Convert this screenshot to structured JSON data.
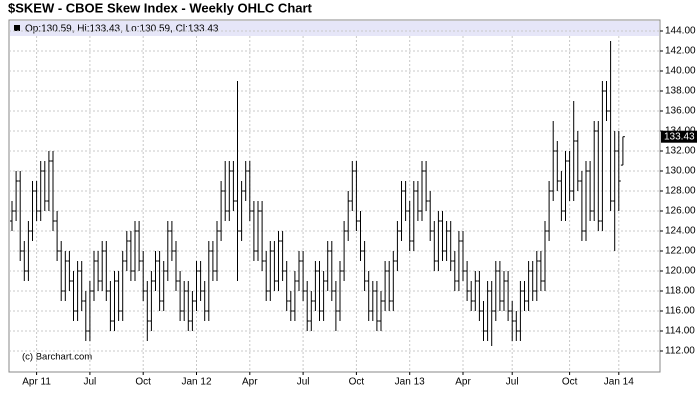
{
  "chart_data": {
    "type": "ohlc",
    "title": "$SKEW - CBOE Skew Index - Weekly OHLC Chart",
    "info_text": "Op:130.59, Hi:133.43, Lo:130.59, Cl:133.43",
    "watermark": "(c) Barchart.com",
    "color": "#000000",
    "grid": true,
    "categories": [
      null,
      null,
      null,
      null,
      null,
      null,
      "Apr 11",
      null,
      null,
      null,
      null,
      null,
      null,
      null,
      null,
      null,
      null,
      null,
      null,
      "Jul",
      null,
      null,
      null,
      null,
      null,
      null,
      null,
      null,
      null,
      null,
      null,
      null,
      "Oct",
      null,
      null,
      null,
      null,
      null,
      null,
      null,
      null,
      null,
      null,
      null,
      null,
      "Jan 12",
      null,
      null,
      null,
      null,
      null,
      null,
      null,
      null,
      null,
      null,
      null,
      null,
      "Apr",
      null,
      null,
      null,
      null,
      null,
      null,
      null,
      null,
      null,
      null,
      null,
      null,
      "Jul",
      null,
      null,
      null,
      null,
      null,
      null,
      null,
      null,
      null,
      null,
      null,
      null,
      "Oct",
      null,
      null,
      null,
      null,
      null,
      null,
      null,
      null,
      null,
      null,
      null,
      null,
      "Jan 13",
      null,
      null,
      null,
      null,
      null,
      null,
      null,
      null,
      null,
      null,
      null,
      null,
      "Apr",
      null,
      null,
      null,
      null,
      null,
      null,
      null,
      null,
      null,
      null,
      null,
      "Jul",
      null,
      null,
      null,
      null,
      null,
      null,
      null,
      null,
      null,
      null,
      null,
      null,
      null,
      "Oct",
      null,
      null,
      null,
      null,
      null,
      null,
      null,
      null,
      null,
      null,
      null,
      "Jan 14",
      null
    ],
    "open": [
      125,
      126,
      129,
      122,
      120,
      124,
      128,
      126,
      130,
      127,
      131,
      125,
      122,
      118,
      121,
      119,
      116,
      120,
      117,
      114,
      118,
      121,
      119,
      122,
      118,
      115,
      119,
      116,
      121,
      123,
      120,
      124,
      121,
      118,
      115,
      119,
      121,
      117,
      120,
      124,
      122,
      119,
      116,
      118,
      115,
      117,
      120,
      118,
      116,
      122,
      120,
      124,
      128,
      126,
      130,
      127,
      124,
      128,
      130,
      126,
      122,
      126,
      121,
      118,
      122,
      119,
      123,
      120,
      117,
      116,
      119,
      121,
      118,
      115,
      117,
      120,
      116,
      119,
      122,
      118,
      116,
      120,
      124,
      127,
      130,
      125,
      122,
      119,
      116,
      118,
      115,
      117,
      120,
      117,
      121,
      124,
      128,
      126,
      123,
      128,
      126,
      130,
      127,
      124,
      121,
      125,
      122,
      124,
      121,
      119,
      123,
      120,
      118,
      117,
      119,
      116,
      114,
      118,
      116,
      120,
      117,
      119,
      116,
      115,
      114,
      118,
      117,
      120,
      118,
      121,
      119,
      124,
      128,
      132,
      129,
      126,
      131,
      128,
      133,
      129,
      124,
      130,
      126,
      134,
      125,
      138,
      136,
      127,
      132,
      130.59
    ],
    "high": [
      127,
      130,
      130,
      123,
      125,
      129,
      129,
      131,
      131,
      132,
      132,
      126,
      123,
      122,
      122,
      120,
      121,
      121,
      118,
      119,
      122,
      122,
      123,
      123,
      119,
      120,
      120,
      122,
      124,
      124,
      125,
      125,
      122,
      119,
      120,
      122,
      122,
      121,
      125,
      125,
      123,
      120,
      119,
      119,
      118,
      121,
      121,
      119,
      123,
      123,
      125,
      129,
      131,
      131,
      131,
      139,
      129,
      131,
      131,
      127,
      127,
      127,
      122,
      123,
      123,
      124,
      124,
      121,
      118,
      120,
      122,
      122,
      119,
      118,
      121,
      121,
      120,
      123,
      123,
      119,
      121,
      125,
      128,
      131,
      131,
      126,
      123,
      120,
      119,
      119,
      118,
      121,
      121,
      122,
      125,
      129,
      129,
      127,
      129,
      129,
      131,
      131,
      128,
      125,
      126,
      126,
      125,
      125,
      122,
      124,
      124,
      121,
      119,
      120,
      120,
      117,
      119,
      119,
      121,
      121,
      120,
      120,
      117,
      116,
      119,
      119,
      121,
      121,
      122,
      122,
      125,
      129,
      135,
      133,
      130,
      132,
      132,
      137,
      134,
      130,
      131,
      131,
      135,
      135,
      139,
      139,
      143,
      134,
      134,
      133.43
    ],
    "low": [
      124,
      125,
      121,
      119,
      119,
      123,
      125,
      125,
      126,
      126,
      124,
      121,
      117,
      117,
      118,
      115,
      115,
      116,
      113,
      113,
      117,
      118,
      118,
      117,
      114,
      114,
      115,
      115,
      120,
      119,
      119,
      120,
      117,
      113,
      114,
      118,
      116,
      116,
      119,
      121,
      118,
      115,
      115,
      114,
      114,
      116,
      117,
      115,
      115,
      119,
      119,
      123,
      125,
      125,
      126,
      119,
      123,
      127,
      125,
      121,
      121,
      120,
      117,
      117,
      118,
      118,
      119,
      116,
      115,
      115,
      118,
      117,
      114,
      114,
      116,
      115,
      115,
      118,
      117,
      114,
      115,
      119,
      123,
      126,
      124,
      121,
      118,
      115,
      115,
      114,
      114,
      116,
      116,
      116,
      120,
      123,
      125,
      122,
      122,
      125,
      125,
      126,
      123,
      120,
      120,
      121,
      121,
      120,
      118,
      118,
      119,
      117,
      116,
      116,
      115,
      113,
      113,
      112.5,
      115,
      116,
      116,
      115,
      113,
      113,
      113,
      116,
      116,
      117,
      117,
      118,
      118,
      123,
      127,
      128,
      125,
      125,
      127,
      127,
      128,
      123,
      123,
      125,
      125,
      124,
      124,
      135,
      126,
      122,
      126,
      130.59
    ],
    "close": [
      126,
      129,
      122,
      120,
      124,
      128,
      126,
      130,
      127,
      131,
      125,
      122,
      118,
      121,
      119,
      116,
      120,
      117,
      114,
      118,
      121,
      119,
      122,
      118,
      115,
      119,
      116,
      121,
      123,
      120,
      124,
      121,
      118,
      115,
      119,
      121,
      117,
      120,
      124,
      122,
      119,
      116,
      118,
      115,
      117,
      120,
      118,
      116,
      122,
      120,
      124,
      128,
      126,
      130,
      127,
      124,
      128,
      130,
      126,
      122,
      126,
      121,
      118,
      122,
      119,
      123,
      120,
      117,
      116,
      119,
      121,
      118,
      115,
      117,
      120,
      116,
      119,
      122,
      118,
      116,
      120,
      124,
      127,
      130,
      125,
      122,
      119,
      116,
      118,
      115,
      117,
      120,
      117,
      121,
      124,
      128,
      126,
      123,
      128,
      126,
      130,
      127,
      124,
      121,
      125,
      122,
      124,
      121,
      119,
      123,
      120,
      118,
      117,
      119,
      116,
      114,
      118,
      116,
      120,
      117,
      119,
      116,
      115,
      114,
      118,
      117,
      120,
      118,
      121,
      119,
      124,
      128,
      132,
      129,
      126,
      131,
      128,
      133,
      129,
      124,
      130,
      126,
      134,
      125,
      138,
      136,
      127,
      132,
      129,
      133.43
    ],
    "ylim": [
      109.9,
      145.1
    ],
    "yticks": [
      {
        "value": 112,
        "label": "112.00"
      },
      {
        "value": 114,
        "label": "114.00"
      },
      {
        "value": 116,
        "label": "116.00"
      },
      {
        "value": 118,
        "label": "118.00"
      },
      {
        "value": 120,
        "label": "120.00"
      },
      {
        "value": 122,
        "label": "122.00"
      },
      {
        "value": 124,
        "label": "124.00"
      },
      {
        "value": 126,
        "label": "126.00"
      },
      {
        "value": 128,
        "label": "128.00"
      },
      {
        "value": 130,
        "label": "130.00"
      },
      {
        "value": 132,
        "label": "132.00"
      },
      {
        "value": 134,
        "label": "134.00"
      },
      {
        "value": 136,
        "label": "136.00"
      },
      {
        "value": 138,
        "label": "138.00"
      },
      {
        "value": 140,
        "label": "140.00"
      },
      {
        "value": 142,
        "label": "142.00"
      },
      {
        "value": 144,
        "label": "144.00"
      }
    ]
  }
}
